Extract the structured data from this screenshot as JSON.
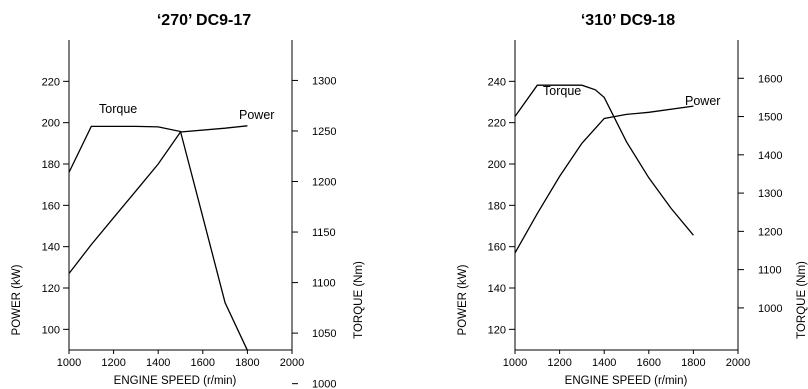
{
  "chart_data": [
    {
      "type": "line",
      "title": "‘270’ DC9-17",
      "xlabel": "ENGINE SPEED (r/min)",
      "ylabel_left": "POWER (kW)",
      "ylabel_right": "TORQUE (Nm)",
      "xlim": [
        1000,
        2000
      ],
      "ylim_left": [
        90,
        240
      ],
      "ylim_right": [
        1033.3,
        1340
      ],
      "x_ticks": [
        "1000",
        "1200",
        "1400",
        "1600",
        "1800",
        "2000"
      ],
      "left_ticks": [
        "100",
        "120",
        "140",
        "160",
        "180",
        "200",
        "220"
      ],
      "right_ticks": [
        "1000",
        "1050",
        "1100",
        "1150",
        "1200",
        "1250",
        "1300"
      ],
      "series": [
        {
          "name": "Power",
          "axis": "left",
          "points": [
            [
              1000,
              127
            ],
            [
              1100,
              141
            ],
            [
              1200,
              154
            ],
            [
              1300,
              167
            ],
            [
              1400,
              180
            ],
            [
              1500,
              195.5
            ],
            [
              1700,
              197.3
            ],
            [
              1800,
              198.5
            ]
          ]
        },
        {
          "name": "Torque",
          "axis": "right",
          "points": [
            [
              1000,
              1209
            ],
            [
              1100,
              1254.5
            ],
            [
              1200,
              1254.5
            ],
            [
              1300,
              1254.5
            ],
            [
              1400,
              1254
            ],
            [
              1500,
              1249.5
            ],
            [
              1600,
              1165
            ],
            [
              1700,
              1080
            ],
            [
              1800,
              1033
            ]
          ]
        }
      ]
    },
    {
      "type": "line",
      "title": "‘310’ DC9-18",
      "xlabel": "ENGINE SPEED (r/min)",
      "ylabel_left": "POWER (kW)",
      "ylabel_right": "TORQUE (Nm)",
      "xlim": [
        1000,
        2000
      ],
      "ylim_left": [
        110,
        260
      ],
      "ylim_right": [
        890,
        1700
      ],
      "x_ticks": [
        "1000",
        "1200",
        "1400",
        "1600",
        "1800",
        "2000"
      ],
      "left_ticks": [
        "120",
        "140",
        "160",
        "180",
        "200",
        "220",
        "240"
      ],
      "right_ticks": [
        "1000",
        "1100",
        "1200",
        "1300",
        "1400",
        "1500",
        "1600"
      ],
      "series": [
        {
          "name": "Power",
          "axis": "left",
          "points": [
            [
              1000,
              157
            ],
            [
              1100,
              176
            ],
            [
              1200,
              194
            ],
            [
              1300,
              210
            ],
            [
              1400,
              222
            ],
            [
              1500,
              224
            ],
            [
              1600,
              225
            ],
            [
              1800,
              228
            ]
          ]
        },
        {
          "name": "Torque",
          "axis": "right",
          "points": [
            [
              1000,
              1500
            ],
            [
              1100,
              1582
            ],
            [
              1200,
              1582
            ],
            [
              1300,
              1582
            ],
            [
              1360,
              1570
            ],
            [
              1400,
              1550
            ],
            [
              1500,
              1434
            ],
            [
              1600,
              1340
            ],
            [
              1700,
              1260
            ],
            [
              1800,
              1190
            ]
          ]
        }
      ]
    }
  ]
}
